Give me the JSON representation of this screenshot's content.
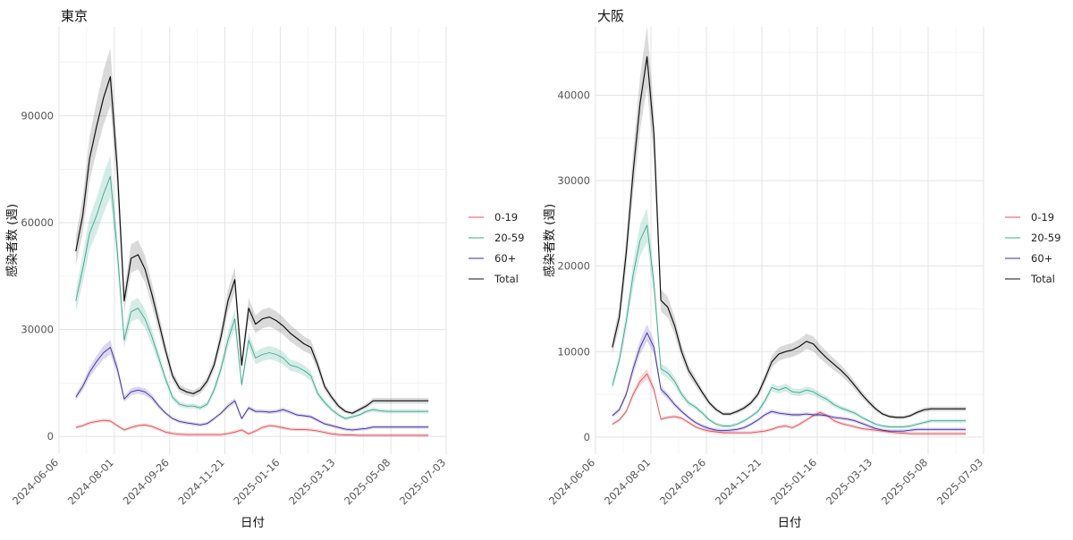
{
  "chart_data": [
    {
      "type": "line",
      "title": "東京",
      "xlabel": "日付",
      "ylabel": "感染者数 (週)",
      "x_ticks": [
        "2024-06-06",
        "2024-08-01",
        "2024-09-26",
        "2024-11-21",
        "2025-01-16",
        "2025-03-13",
        "2025-05-08",
        "2025-07-03"
      ],
      "xlim": [
        "2024-06-06",
        "2025-07-03"
      ],
      "y_ticks": [
        0,
        30000,
        60000,
        90000
      ],
      "ylim": [
        -5000,
        115000
      ],
      "grid": true,
      "legend_position": "right",
      "ribbons": true,
      "x": [
        "2024-06-23",
        "2024-06-30",
        "2024-07-07",
        "2024-07-14",
        "2024-07-21",
        "2024-07-28",
        "2024-08-04",
        "2024-08-11",
        "2024-08-18",
        "2024-08-25",
        "2024-09-01",
        "2024-09-08",
        "2024-09-15",
        "2024-09-22",
        "2024-09-29",
        "2024-10-06",
        "2024-10-13",
        "2024-10-20",
        "2024-10-27",
        "2024-11-03",
        "2024-11-10",
        "2024-11-17",
        "2024-11-24",
        "2024-12-01",
        "2024-12-08",
        "2024-12-15",
        "2024-12-22",
        "2024-12-29",
        "2025-01-05",
        "2025-01-12",
        "2025-01-19",
        "2025-01-26",
        "2025-02-02",
        "2025-02-09",
        "2025-02-16",
        "2025-02-23",
        "2025-03-02",
        "2025-03-09",
        "2025-03-16",
        "2025-03-23",
        "2025-03-30",
        "2025-04-06",
        "2025-04-13",
        "2025-04-20",
        "2025-04-27",
        "2025-05-04",
        "2025-05-11",
        "2025-05-18",
        "2025-05-25",
        "2025-06-01",
        "2025-06-08",
        "2025-06-15"
      ],
      "series": [
        {
          "name": "0-19",
          "color": "#e0505a",
          "values": [
            2500,
            3000,
            3800,
            4200,
            4500,
            4300,
            3000,
            1800,
            2500,
            3000,
            3200,
            2800,
            2000,
            1200,
            800,
            600,
            500,
            500,
            500,
            500,
            500,
            500,
            800,
            1200,
            1800,
            700,
            1500,
            2500,
            3000,
            2800,
            2400,
            2000,
            1900,
            1900,
            1800,
            1500,
            1100,
            700,
            500,
            400,
            400,
            300,
            300,
            300,
            300,
            300,
            300,
            300,
            300,
            300,
            300,
            300
          ]
        },
        {
          "name": "20-59",
          "color": "#3aa88c",
          "values": [
            38000,
            47000,
            57000,
            62000,
            68000,
            73000,
            52000,
            27000,
            35000,
            36000,
            33000,
            28000,
            22000,
            16000,
            11000,
            9000,
            8500,
            8500,
            8000,
            9000,
            13000,
            19000,
            27000,
            33000,
            14500,
            27000,
            22000,
            23000,
            23500,
            23000,
            22000,
            20000,
            19500,
            18500,
            17000,
            12000,
            9500,
            7500,
            6000,
            5000,
            5500,
            6000,
            7000,
            7500,
            7200,
            7000,
            7000,
            7000,
            7000,
            7000,
            7000,
            7000
          ]
        },
        {
          "name": "60+",
          "color": "#3c2b9c",
          "values": [
            11000,
            14000,
            18000,
            21000,
            23500,
            25000,
            19000,
            10500,
            12500,
            13000,
            12500,
            11000,
            8500,
            6500,
            5000,
            4200,
            3800,
            3500,
            3200,
            3600,
            5000,
            6500,
            8500,
            10000,
            5000,
            8000,
            7000,
            7000,
            6800,
            7000,
            7500,
            6800,
            6000,
            5800,
            5500,
            4500,
            3500,
            3000,
            2500,
            2000,
            1800,
            2000,
            2200,
            2600,
            2600,
            2600,
            2600,
            2600,
            2600,
            2600,
            2600,
            2600
          ]
        },
        {
          "name": "Total",
          "color": "#111111",
          "values": [
            52000,
            62000,
            78000,
            87000,
            95000,
            101000,
            75000,
            38000,
            50000,
            51000,
            47000,
            40000,
            32000,
            24000,
            17000,
            13500,
            12500,
            12000,
            13000,
            15500,
            20000,
            28000,
            38000,
            44000,
            20000,
            36000,
            31500,
            33000,
            33500,
            32500,
            31000,
            29000,
            27500,
            26000,
            25000,
            20000,
            14000,
            11000,
            8500,
            7000,
            6500,
            7500,
            8500,
            10000,
            10000,
            10000,
            10000,
            10000,
            10000,
            10000,
            10000,
            10000
          ]
        }
      ]
    },
    {
      "type": "line",
      "title": "大阪",
      "xlabel": "日付",
      "ylabel": "感染者数 (週)",
      "x_ticks": [
        "2024-06-06",
        "2024-08-01",
        "2024-09-26",
        "2024-11-21",
        "2025-01-16",
        "2025-03-13",
        "2025-05-08",
        "2025-07-03"
      ],
      "xlim": [
        "2024-06-06",
        "2025-07-03"
      ],
      "y_ticks": [
        0,
        10000,
        20000,
        30000,
        40000
      ],
      "ylim": [
        -2000,
        48000
      ],
      "grid": true,
      "legend_position": "right",
      "ribbons": true,
      "x": [
        "2024-06-23",
        "2024-06-30",
        "2024-07-07",
        "2024-07-14",
        "2024-07-21",
        "2024-07-28",
        "2024-08-04",
        "2024-08-11",
        "2024-08-18",
        "2024-08-25",
        "2024-09-01",
        "2024-09-08",
        "2024-09-15",
        "2024-09-22",
        "2024-09-29",
        "2024-10-06",
        "2024-10-13",
        "2024-10-20",
        "2024-10-27",
        "2024-11-03",
        "2024-11-10",
        "2024-11-17",
        "2024-11-24",
        "2024-12-01",
        "2024-12-08",
        "2024-12-15",
        "2024-12-22",
        "2024-12-29",
        "2025-01-05",
        "2025-01-12",
        "2025-01-19",
        "2025-01-26",
        "2025-02-02",
        "2025-02-09",
        "2025-02-16",
        "2025-02-23",
        "2025-03-02",
        "2025-03-09",
        "2025-03-16",
        "2025-03-23",
        "2025-03-30",
        "2025-04-06",
        "2025-04-13",
        "2025-04-20",
        "2025-04-27",
        "2025-05-04",
        "2025-05-11",
        "2025-05-18",
        "2025-05-25",
        "2025-06-01",
        "2025-06-08",
        "2025-06-15"
      ],
      "series": [
        {
          "name": "0-19",
          "color": "#e0505a",
          "values": [
            1500,
            2000,
            3000,
            5000,
            6500,
            7400,
            5600,
            2100,
            2300,
            2400,
            2200,
            1700,
            1200,
            900,
            700,
            600,
            500,
            500,
            500,
            500,
            500,
            600,
            700,
            900,
            1200,
            1300,
            1100,
            1500,
            2000,
            2500,
            2900,
            2500,
            1900,
            1600,
            1400,
            1200,
            1000,
            900,
            800,
            700,
            600,
            500,
            450,
            400,
            400,
            400,
            400,
            400,
            400,
            400,
            400,
            400
          ]
        },
        {
          "name": "20-59",
          "color": "#3aa88c",
          "values": [
            6000,
            9000,
            13500,
            19000,
            23000,
            24800,
            18000,
            8000,
            7500,
            6500,
            5000,
            4000,
            3500,
            2800,
            2000,
            1500,
            1300,
            1300,
            1500,
            1900,
            2400,
            3000,
            4200,
            5800,
            5500,
            5800,
            5300,
            5200,
            5500,
            5300,
            4800,
            4400,
            3800,
            3400,
            3100,
            2800,
            2300,
            1900,
            1500,
            1300,
            1200,
            1200,
            1200,
            1300,
            1500,
            1700,
            1900,
            1900,
            1900,
            1900,
            1900,
            1900
          ]
        },
        {
          "name": "60+",
          "color": "#3c2b9c",
          "values": [
            2500,
            3200,
            5000,
            8000,
            10500,
            12200,
            10500,
            5600,
            4800,
            3800,
            3000,
            2300,
            1700,
            1300,
            1000,
            800,
            750,
            800,
            900,
            1100,
            1500,
            2000,
            2600,
            3000,
            2800,
            2700,
            2600,
            2600,
            2700,
            2600,
            2600,
            2500,
            2300,
            2200,
            2100,
            1900,
            1600,
            1300,
            1000,
            800,
            700,
            700,
            700,
            800,
            900,
            900,
            900,
            900,
            900,
            900,
            900,
            900
          ]
        },
        {
          "name": "Total",
          "color": "#111111",
          "values": [
            10500,
            14000,
            21500,
            31000,
            39000,
            44500,
            35500,
            16000,
            15200,
            13000,
            10000,
            7800,
            6500,
            5200,
            4000,
            3200,
            2700,
            2700,
            3000,
            3400,
            4000,
            5000,
            6800,
            8800,
            9700,
            10000,
            10200,
            10600,
            11200,
            10900,
            10000,
            9200,
            8500,
            7800,
            7000,
            6000,
            5000,
            4100,
            3300,
            2700,
            2400,
            2300,
            2300,
            2500,
            2900,
            3200,
            3300,
            3300,
            3300,
            3300,
            3300,
            3300
          ]
        }
      ]
    }
  ]
}
